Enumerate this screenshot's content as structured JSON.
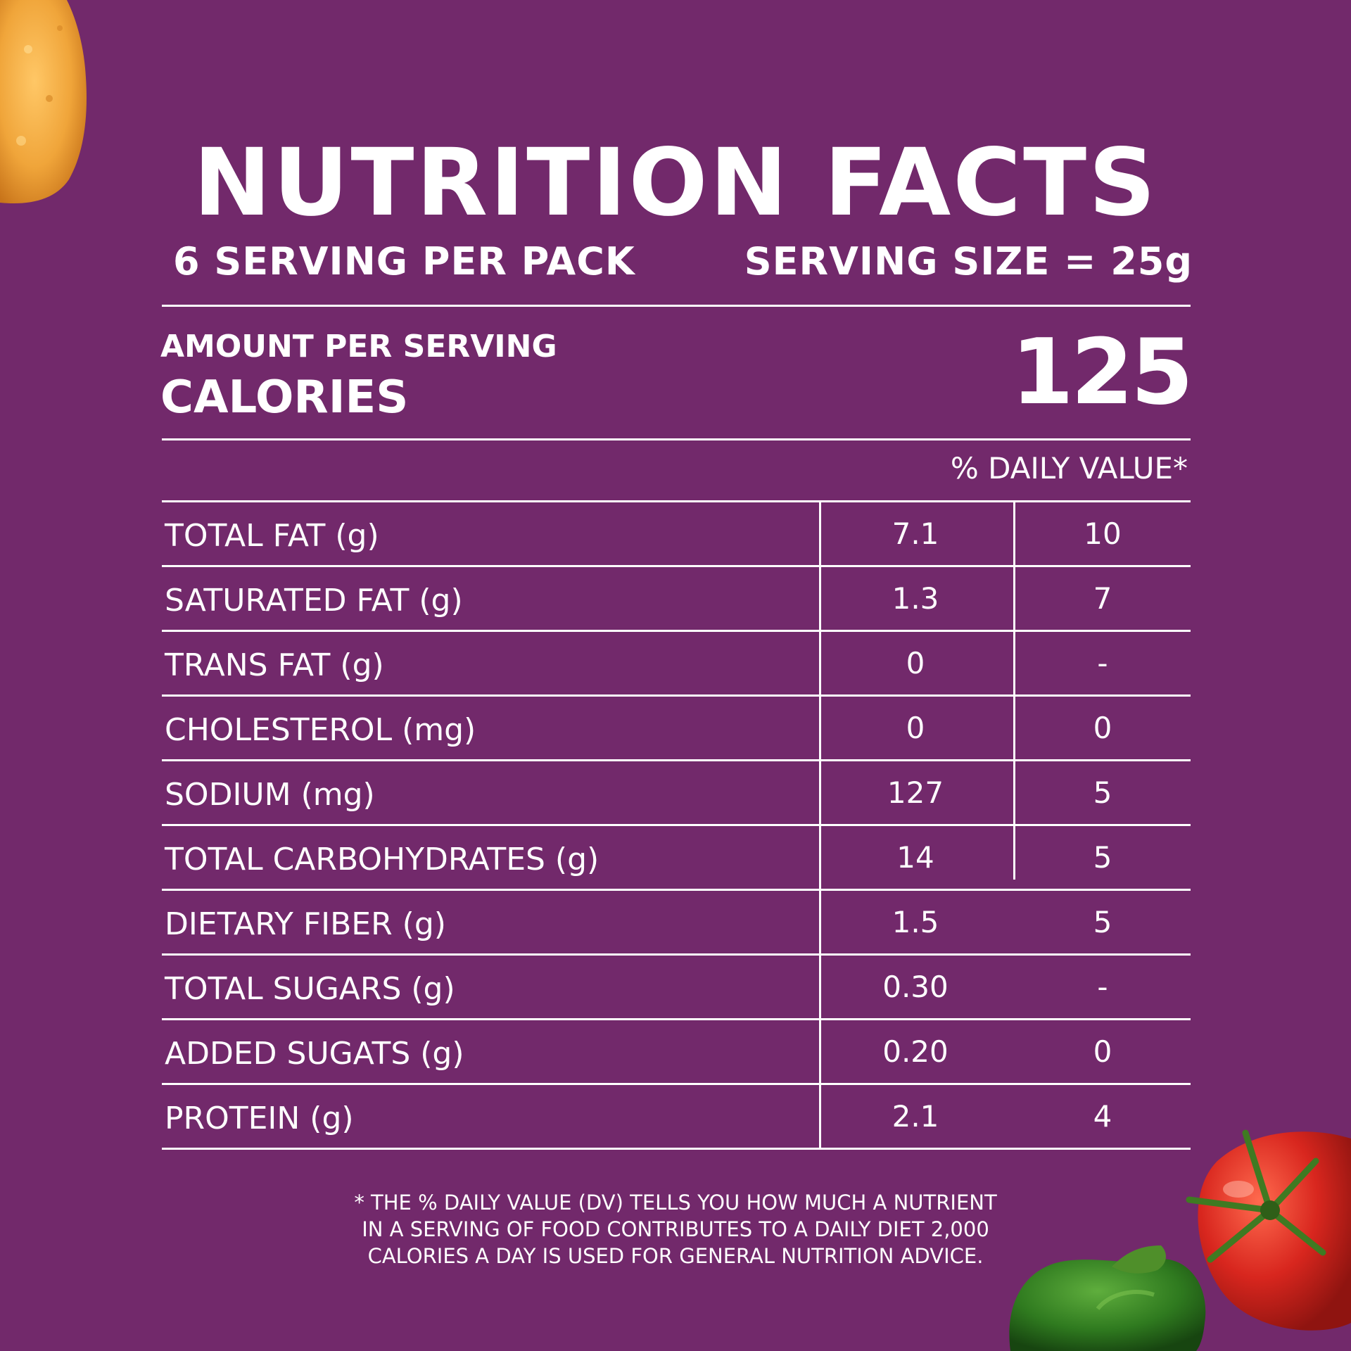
{
  "title": "NUTRITION FACTS",
  "servings_per_pack": "6 SERVING PER PACK",
  "serving_size": "SERVING SIZE = 25g",
  "amount_per_serving_label": "AMOUNT PER SERVING",
  "calories_label": "CALORIES",
  "calories_value": "125",
  "daily_value_header": "% DAILY VALUE*",
  "nutrients": [
    {
      "name": "TOTAL FAT (g)",
      "amount": "7.1",
      "daily_value": "10"
    },
    {
      "name": "SATURATED FAT (g)",
      "amount": "1.3",
      "daily_value": "7"
    },
    {
      "name": "TRANS FAT (g)",
      "amount": "0",
      "daily_value": "-"
    },
    {
      "name": "CHOLESTEROL (mg)",
      "amount": "0",
      "daily_value": "0"
    },
    {
      "name": "SODIUM (mg)",
      "amount": "127",
      "daily_value": "5"
    },
    {
      "name": "TOTAL CARBOHYDRATES (g)",
      "amount": "14",
      "daily_value": "5"
    },
    {
      "name": "DIETARY FIBER (g)",
      "amount": "1.5",
      "daily_value": "5"
    },
    {
      "name": "TOTAL SUGARS (g)",
      "amount": "0.30",
      "daily_value": "-"
    },
    {
      "name": "ADDED SUGATS (g)",
      "amount": "0.20",
      "daily_value": "0"
    },
    {
      "name": "PROTEIN (g)",
      "amount": "2.1",
      "daily_value": "4"
    }
  ],
  "footnote": {
    "line1": "* THE % DAILY VALUE (DV) TELLS YOU HOW MUCH A NUTRIENT",
    "line2": "IN A SERVING OF FOOD CONTRIBUTES TO A DAILY DIET 2,000",
    "line3": "CALORIES A DAY IS USED FOR GENERAL NUTRITION ADVICE."
  },
  "colors": {
    "background": "#72296b",
    "text": "#ffffff",
    "chip": "#f0a53a",
    "tomato": "#d8261e",
    "pepper": "#2f7a1f"
  },
  "decorations": [
    "potato-chip-image",
    "tomato-image",
    "green-pepper-image"
  ]
}
